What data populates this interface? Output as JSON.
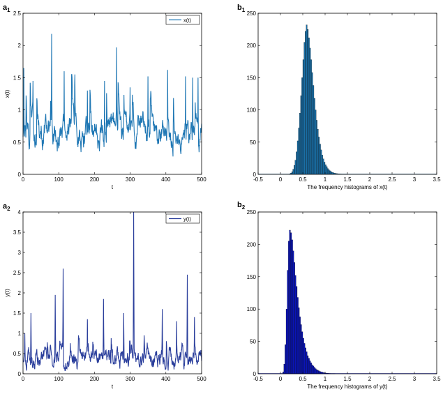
{
  "panels": {
    "a1": {
      "letter": "a",
      "sub": "1"
    },
    "b1": {
      "letter": "b",
      "sub": "1"
    },
    "a2": {
      "letter": "a",
      "sub": "2"
    },
    "b2": {
      "letter": "b",
      "sub": "2"
    }
  },
  "chart_data": [
    {
      "id": "a1",
      "type": "line",
      "title": "",
      "xlabel": "t",
      "ylabel": "x(t)",
      "xlim": [
        0,
        500
      ],
      "ylim": [
        0,
        2.5
      ],
      "xticks": [
        "0",
        "100",
        "200",
        "300",
        "400",
        "500"
      ],
      "yticks": [
        "0",
        "0.5",
        "1",
        "1.5",
        "2",
        "2.5"
      ],
      "grid": false,
      "legend": "top-right",
      "color": "#1f77b4",
      "series": [
        {
          "name": "x(t)",
          "baseline": 0.65,
          "noise": 0.12,
          "range": [
            0.25,
            1.55
          ],
          "spikes": [
            [
              2,
              1.65
            ],
            [
              28,
              1.45
            ],
            [
              80,
              2.18
            ],
            [
              115,
              1.6
            ],
            [
              145,
              1.55
            ],
            [
              180,
              1.3
            ],
            [
              228,
              1.45
            ],
            [
              262,
              1.97
            ],
            [
              300,
              1.35
            ],
            [
              350,
              1.52
            ],
            [
              405,
              1.62
            ],
            [
              455,
              1.52
            ],
            [
              475,
              1.5
            ],
            [
              490,
              1.5
            ]
          ]
        }
      ]
    },
    {
      "id": "b1",
      "type": "bar",
      "title": "",
      "xlabel": "The  frequency histograms of x(t)",
      "ylabel": "",
      "xlim": [
        -0.5,
        3.5
      ],
      "ylim": [
        0,
        250
      ],
      "xticks": [
        "-0.5",
        "0",
        "0.5",
        "1",
        "1.5",
        "2",
        "2.5",
        "3",
        "3.5"
      ],
      "yticks": [
        "0",
        "50",
        "100",
        "150",
        "200",
        "250"
      ],
      "color": "#1a6fa6",
      "bin_width": 0.025,
      "bin_start": 0.2,
      "values": [
        1,
        2,
        4,
        8,
        14,
        22,
        35,
        52,
        72,
        95,
        122,
        150,
        178,
        205,
        222,
        232,
        225,
        212,
        196,
        178,
        158,
        138,
        118,
        100,
        84,
        70,
        58,
        47,
        38,
        30,
        24,
        19,
        15,
        12,
        9,
        7,
        5.5,
        4,
        3,
        2.5,
        2,
        1.5,
        1.2,
        1,
        0.8,
        0.6,
        0.5,
        0.4,
        0.3,
        0.3,
        0.2,
        0.2
      ]
    },
    {
      "id": "a2",
      "type": "line",
      "title": "",
      "xlabel": "t",
      "ylabel": "y(t)",
      "xlim": [
        0,
        500
      ],
      "ylim": [
        0,
        4
      ],
      "xticks": [
        "0",
        "100",
        "200",
        "300",
        "400",
        "500"
      ],
      "yticks": [
        "0",
        "0.5",
        "1",
        "1.5",
        "2",
        "2.5",
        "3",
        "3.5",
        "4"
      ],
      "grid": false,
      "legend": "top-right",
      "color": "#2b3f9c",
      "series": [
        {
          "name": "y(t)",
          "baseline": 0.35,
          "noise": 0.12,
          "range": [
            0.08,
            0.95
          ],
          "spikes": [
            [
              5,
              1.0
            ],
            [
              22,
              1.5
            ],
            [
              90,
              1.95
            ],
            [
              112,
              2.6
            ],
            [
              180,
              1.35
            ],
            [
              225,
              1.85
            ],
            [
              282,
              1.5
            ],
            [
              310,
              4.0
            ],
            [
              390,
              1.6
            ],
            [
              430,
              1.3
            ],
            [
              460,
              2.45
            ],
            [
              480,
              1.4
            ]
          ]
        }
      ]
    },
    {
      "id": "b2",
      "type": "bar",
      "title": "",
      "xlabel": "The  frequency histograms of y(t)",
      "ylabel": "",
      "xlim": [
        -0.5,
        3.5
      ],
      "ylim": [
        0,
        250
      ],
      "xticks": [
        "-0.5",
        "0",
        "0.5",
        "1",
        "1.5",
        "2",
        "2.5",
        "3",
        "3.5"
      ],
      "yticks": [
        "0",
        "50",
        "100",
        "150",
        "200",
        "250"
      ],
      "color": "#0a14b8",
      "bin_width": 0.025,
      "bin_start": 0.05,
      "values": [
        3,
        15,
        45,
        100,
        160,
        205,
        222,
        218,
        207,
        190,
        172,
        152,
        135,
        118,
        102,
        88,
        76,
        65,
        55,
        47,
        40,
        34,
        28,
        24,
        20,
        17,
        14,
        12,
        10,
        8,
        6.5,
        5.5,
        4.5,
        3.5,
        3,
        2.5,
        2,
        1.5,
        1.2,
        1,
        0.8,
        0.6,
        0.5,
        0.4,
        0.3,
        0.3,
        0.2
      ]
    }
  ]
}
